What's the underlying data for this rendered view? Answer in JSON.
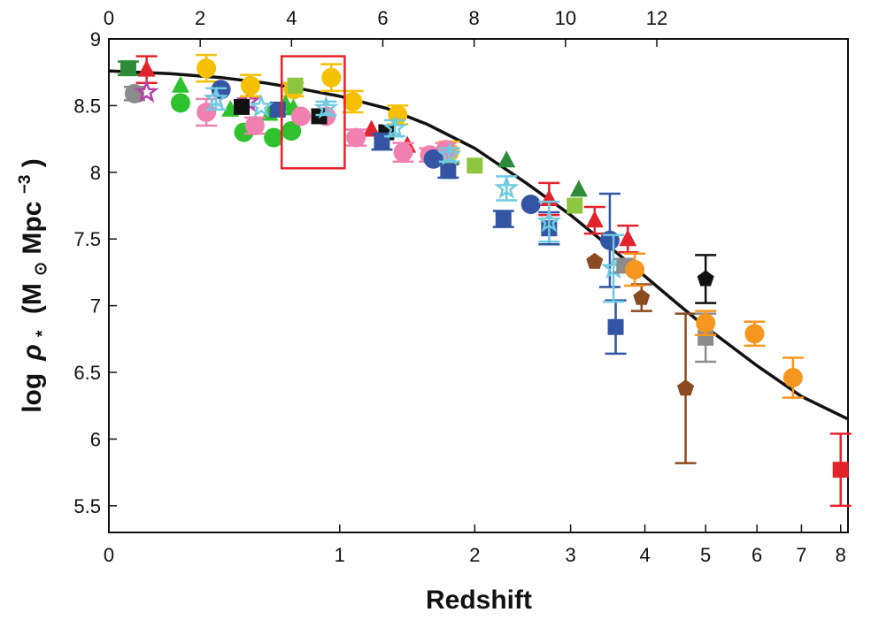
{
  "chart_data": {
    "type": "scatter",
    "title": "",
    "xlabel": "Redshift",
    "ylabel": {
      "prefix": "log",
      "symbol": "ρ",
      "subscript": "*",
      "units_open": "(M",
      "sun_symbol": "⊙",
      "units_mid": "Mpc",
      "superscript": "−3",
      "units_close": ")"
    },
    "xscale": "log(1+z)",
    "ylim": [
      5.3,
      9.0
    ],
    "xlim": [
      0,
      8.2
    ],
    "x_ticks": [
      "0",
      "1",
      "2",
      "3",
      "4",
      "5",
      "6",
      "7",
      "8"
    ],
    "y_ticks": [
      "5.5",
      "6",
      "6.5",
      "7",
      "7.5",
      "8",
      "8.5",
      "9"
    ],
    "top_ticks": [
      "0",
      "2",
      "4",
      "6",
      "8",
      "10",
      "12"
    ],
    "grid": false,
    "legend": "none",
    "fit_curve": {
      "color": "#111111",
      "x": [
        0,
        0.2,
        0.4,
        0.6,
        0.8,
        1.0,
        1.3,
        1.6,
        2.0,
        2.5,
        3.0,
        3.5,
        4.0,
        4.5,
        5.0,
        6.0,
        7.0,
        8.2
      ],
      "y": [
        8.76,
        8.74,
        8.71,
        8.67,
        8.62,
        8.57,
        8.48,
        8.36,
        8.18,
        7.92,
        7.68,
        7.44,
        7.22,
        7.02,
        6.84,
        6.55,
        6.32,
        6.15
      ]
    },
    "highlight_box": {
      "color": "#e3232c",
      "x_range": [
        0.68,
        1.03
      ],
      "y_range": [
        8.03,
        8.87
      ]
    },
    "series": [
      {
        "marker": "square",
        "color": "#2e8b3a",
        "points": [
          [
            0.06,
            8.78,
            0.05
          ]
        ]
      },
      {
        "marker": "triangle",
        "color": "#e3232c",
        "points": [
          [
            0.12,
            8.77,
            0.1
          ],
          [
            1.2,
            8.32,
            0
          ],
          [
            1.45,
            8.2,
            0
          ],
          [
            2.75,
            7.8,
            0.12
          ],
          [
            3.3,
            7.64,
            0.1
          ],
          [
            3.75,
            7.5,
            0.1
          ]
        ]
      },
      {
        "marker": "circle",
        "color": "#8c8c8c",
        "points": [
          [
            0.08,
            8.59,
            0.05
          ]
        ]
      },
      {
        "marker": "star",
        "color": "#b63fa8",
        "points": [
          [
            0.12,
            8.6,
            0
          ],
          [
            0.38,
            8.55,
            0
          ],
          [
            0.52,
            8.53,
            0
          ]
        ]
      },
      {
        "marker": "circle",
        "color": "#f4c000",
        "points": [
          [
            0.34,
            8.78,
            0.1
          ],
          [
            0.53,
            8.65,
            0.08
          ],
          [
            0.74,
            8.62,
            0.05
          ],
          [
            0.95,
            8.71,
            0.1
          ],
          [
            1.08,
            8.53,
            0.08
          ],
          [
            1.38,
            8.43,
            0.07
          ],
          [
            1.78,
            8.15,
            0.08
          ]
        ]
      },
      {
        "marker": "triangle",
        "color": "#2ec22e",
        "points": [
          [
            0.24,
            8.65,
            0
          ],
          [
            0.44,
            8.47,
            0
          ],
          [
            0.62,
            8.44,
            0
          ],
          [
            0.7,
            8.51,
            0
          ],
          [
            0.74,
            8.48,
            0
          ]
        ]
      },
      {
        "marker": "circle",
        "color": "#2ec22e",
        "points": [
          [
            0.24,
            8.52,
            0
          ],
          [
            0.5,
            8.3,
            0
          ],
          [
            0.64,
            8.26,
            0
          ],
          [
            0.73,
            8.31,
            0
          ]
        ]
      },
      {
        "marker": "square",
        "color": "#8dc63f",
        "points": [
          [
            0.75,
            8.65,
            0
          ],
          [
            2.0,
            8.05,
            0
          ],
          [
            3.05,
            7.75,
            0
          ]
        ]
      },
      {
        "marker": "triangle",
        "color": "#2e8b3a",
        "points": [
          [
            2.3,
            8.09,
            0
          ],
          [
            3.1,
            7.87,
            0
          ]
        ]
      },
      {
        "marker": "circle",
        "color": "#f080b0",
        "points": [
          [
            0.34,
            8.45,
            0.1
          ],
          [
            0.55,
            8.35,
            0.06
          ],
          [
            0.78,
            8.42,
            0
          ],
          [
            0.92,
            8.42,
            0
          ],
          [
            1.1,
            8.26,
            0.06
          ],
          [
            1.42,
            8.15,
            0.07
          ],
          [
            1.62,
            8.13,
            0.05
          ],
          [
            1.75,
            8.17,
            0.05
          ]
        ]
      },
      {
        "marker": "square",
        "color": "#111111",
        "points": [
          [
            0.49,
            8.49,
            0
          ],
          [
            0.88,
            8.42,
            0
          ],
          [
            1.3,
            8.3,
            0
          ]
        ]
      },
      {
        "marker": "square",
        "color": "#3454a4",
        "points": [
          [
            0.66,
            8.47,
            0
          ],
          [
            1.27,
            8.23,
            0.06
          ],
          [
            1.77,
            8.01,
            0.05
          ],
          [
            2.27,
            7.65,
            0.06
          ],
          [
            2.75,
            7.58,
            0.12
          ],
          [
            3.58,
            6.84,
            0.2
          ]
        ]
      },
      {
        "marker": "circle",
        "color": "#3454a4",
        "points": [
          [
            0.4,
            8.62,
            0
          ],
          [
            1.65,
            8.1,
            0
          ],
          [
            2.55,
            7.76,
            0
          ],
          [
            3.5,
            7.49,
            0.35
          ]
        ]
      },
      {
        "marker": "star",
        "color": "#6ecbe0",
        "points": [
          [
            0.38,
            8.55,
            0.08
          ],
          [
            0.58,
            8.49,
            0
          ],
          [
            0.92,
            8.48,
            0.05
          ],
          [
            1.36,
            8.33,
            0.06
          ],
          [
            1.78,
            8.13,
            0.05
          ],
          [
            2.3,
            7.88,
            0.09
          ],
          [
            2.75,
            7.63,
            0.15
          ],
          [
            3.55,
            7.28,
            0.25
          ]
        ]
      },
      {
        "marker": "pentagon",
        "color": "#8b4a1f",
        "points": [
          [
            3.3,
            7.33,
            0
          ],
          [
            3.95,
            7.06,
            0.1
          ],
          [
            4.65,
            6.38,
            0.56
          ]
        ]
      },
      {
        "marker": "square",
        "color": "#8c8c8c",
        "points": [
          [
            3.7,
            7.3,
            0.05
          ],
          [
            5.0,
            6.76,
            0.18
          ]
        ]
      },
      {
        "marker": "circle",
        "color": "#f5961f",
        "points": [
          [
            3.85,
            7.27,
            0.12
          ],
          [
            5.0,
            6.87,
            0.09
          ],
          [
            5.95,
            6.79,
            0.09
          ],
          [
            6.8,
            6.46,
            0.15
          ]
        ]
      },
      {
        "marker": "pentagon",
        "color": "#111111",
        "points": [
          [
            5.0,
            7.2,
            0.18
          ]
        ]
      },
      {
        "marker": "square",
        "color": "#e3232c",
        "points": [
          [
            8.0,
            5.77,
            0.27
          ]
        ]
      }
    ]
  }
}
